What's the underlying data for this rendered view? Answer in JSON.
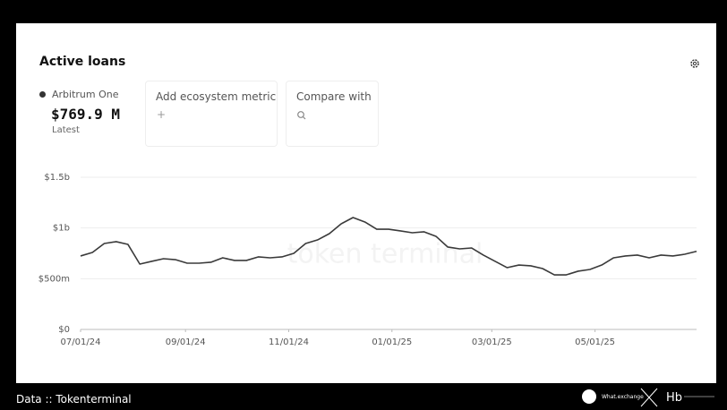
{
  "ui": {
    "title": "Active loans",
    "latest_value": "$769.9 M",
    "latest_caption": "Latest",
    "add_metric": "Add ecosystem metric",
    "add_icon": "+",
    "compare": "Compare with",
    "watermark": "token terminal",
    "footer": "Data :: Tokenterminal",
    "brand": "What.exchange"
  },
  "chart_data": {
    "type": "line",
    "x": [
      "2024-07-01",
      "2024-07-08",
      "2024-07-15",
      "2024-07-22",
      "2024-07-29",
      "2024-08-05",
      "2024-08-12",
      "2024-08-19",
      "2024-08-26",
      "2024-09-02",
      "2024-09-09",
      "2024-09-16",
      "2024-09-23",
      "2024-09-30",
      "2024-10-07",
      "2024-10-14",
      "2024-10-21",
      "2024-10-28",
      "2024-11-04",
      "2024-11-11",
      "2024-11-18",
      "2024-11-25",
      "2024-12-02",
      "2024-12-09",
      "2024-12-16",
      "2024-12-23",
      "2024-12-30",
      "2025-01-06",
      "2025-01-13",
      "2025-01-20",
      "2025-01-27",
      "2025-02-03",
      "2025-02-10",
      "2025-02-17",
      "2025-02-24",
      "2025-03-03",
      "2025-03-10",
      "2025-03-17",
      "2025-03-24",
      "2025-03-31",
      "2025-04-07",
      "2025-04-14",
      "2025-04-21",
      "2025-04-28",
      "2025-05-05",
      "2025-05-12",
      "2025-05-19",
      "2025-05-26",
      "2025-06-02",
      "2025-06-09",
      "2025-06-16",
      "2025-06-23",
      "2025-06-30"
    ],
    "series": [
      {
        "name": "Arbitrum One",
        "color": "#3a3a3a",
        "values": [
          724,
          759,
          847,
          865,
          838,
          644,
          671,
          697,
          688,
          653,
          653,
          662,
          706,
          680,
          680,
          715,
          706,
          715,
          750,
          847,
          882,
          944,
          1041,
          1103,
          1059,
          988,
          988,
          971,
          953,
          962,
          918,
          812,
          794,
          803,
          733,
          671,
          609,
          635,
          627,
          600,
          538,
          538,
          574,
          591,
          635,
          706,
          724,
          733,
          706,
          733,
          724,
          741,
          770
        ]
      }
    ],
    "xlim": [
      "2024-07-01",
      "2025-06-30"
    ],
    "xticks": [
      {
        "value": "2024-07-01",
        "label": "07/01/24"
      },
      {
        "value": "2024-09-01",
        "label": "09/01/24"
      },
      {
        "value": "2024-11-01",
        "label": "11/01/24"
      },
      {
        "value": "2025-01-01",
        "label": "01/01/25"
      },
      {
        "value": "2025-03-01",
        "label": "03/01/25"
      },
      {
        "value": "2025-05-01",
        "label": "05/01/25"
      }
    ],
    "ylim": [
      0,
      1500
    ],
    "yticks": [
      {
        "value": 0,
        "label": "$0"
      },
      {
        "value": 500,
        "label": "$500m"
      },
      {
        "value": 1000,
        "label": "$1b"
      },
      {
        "value": 1500,
        "label": "$1.5b"
      }
    ],
    "grid": true
  }
}
